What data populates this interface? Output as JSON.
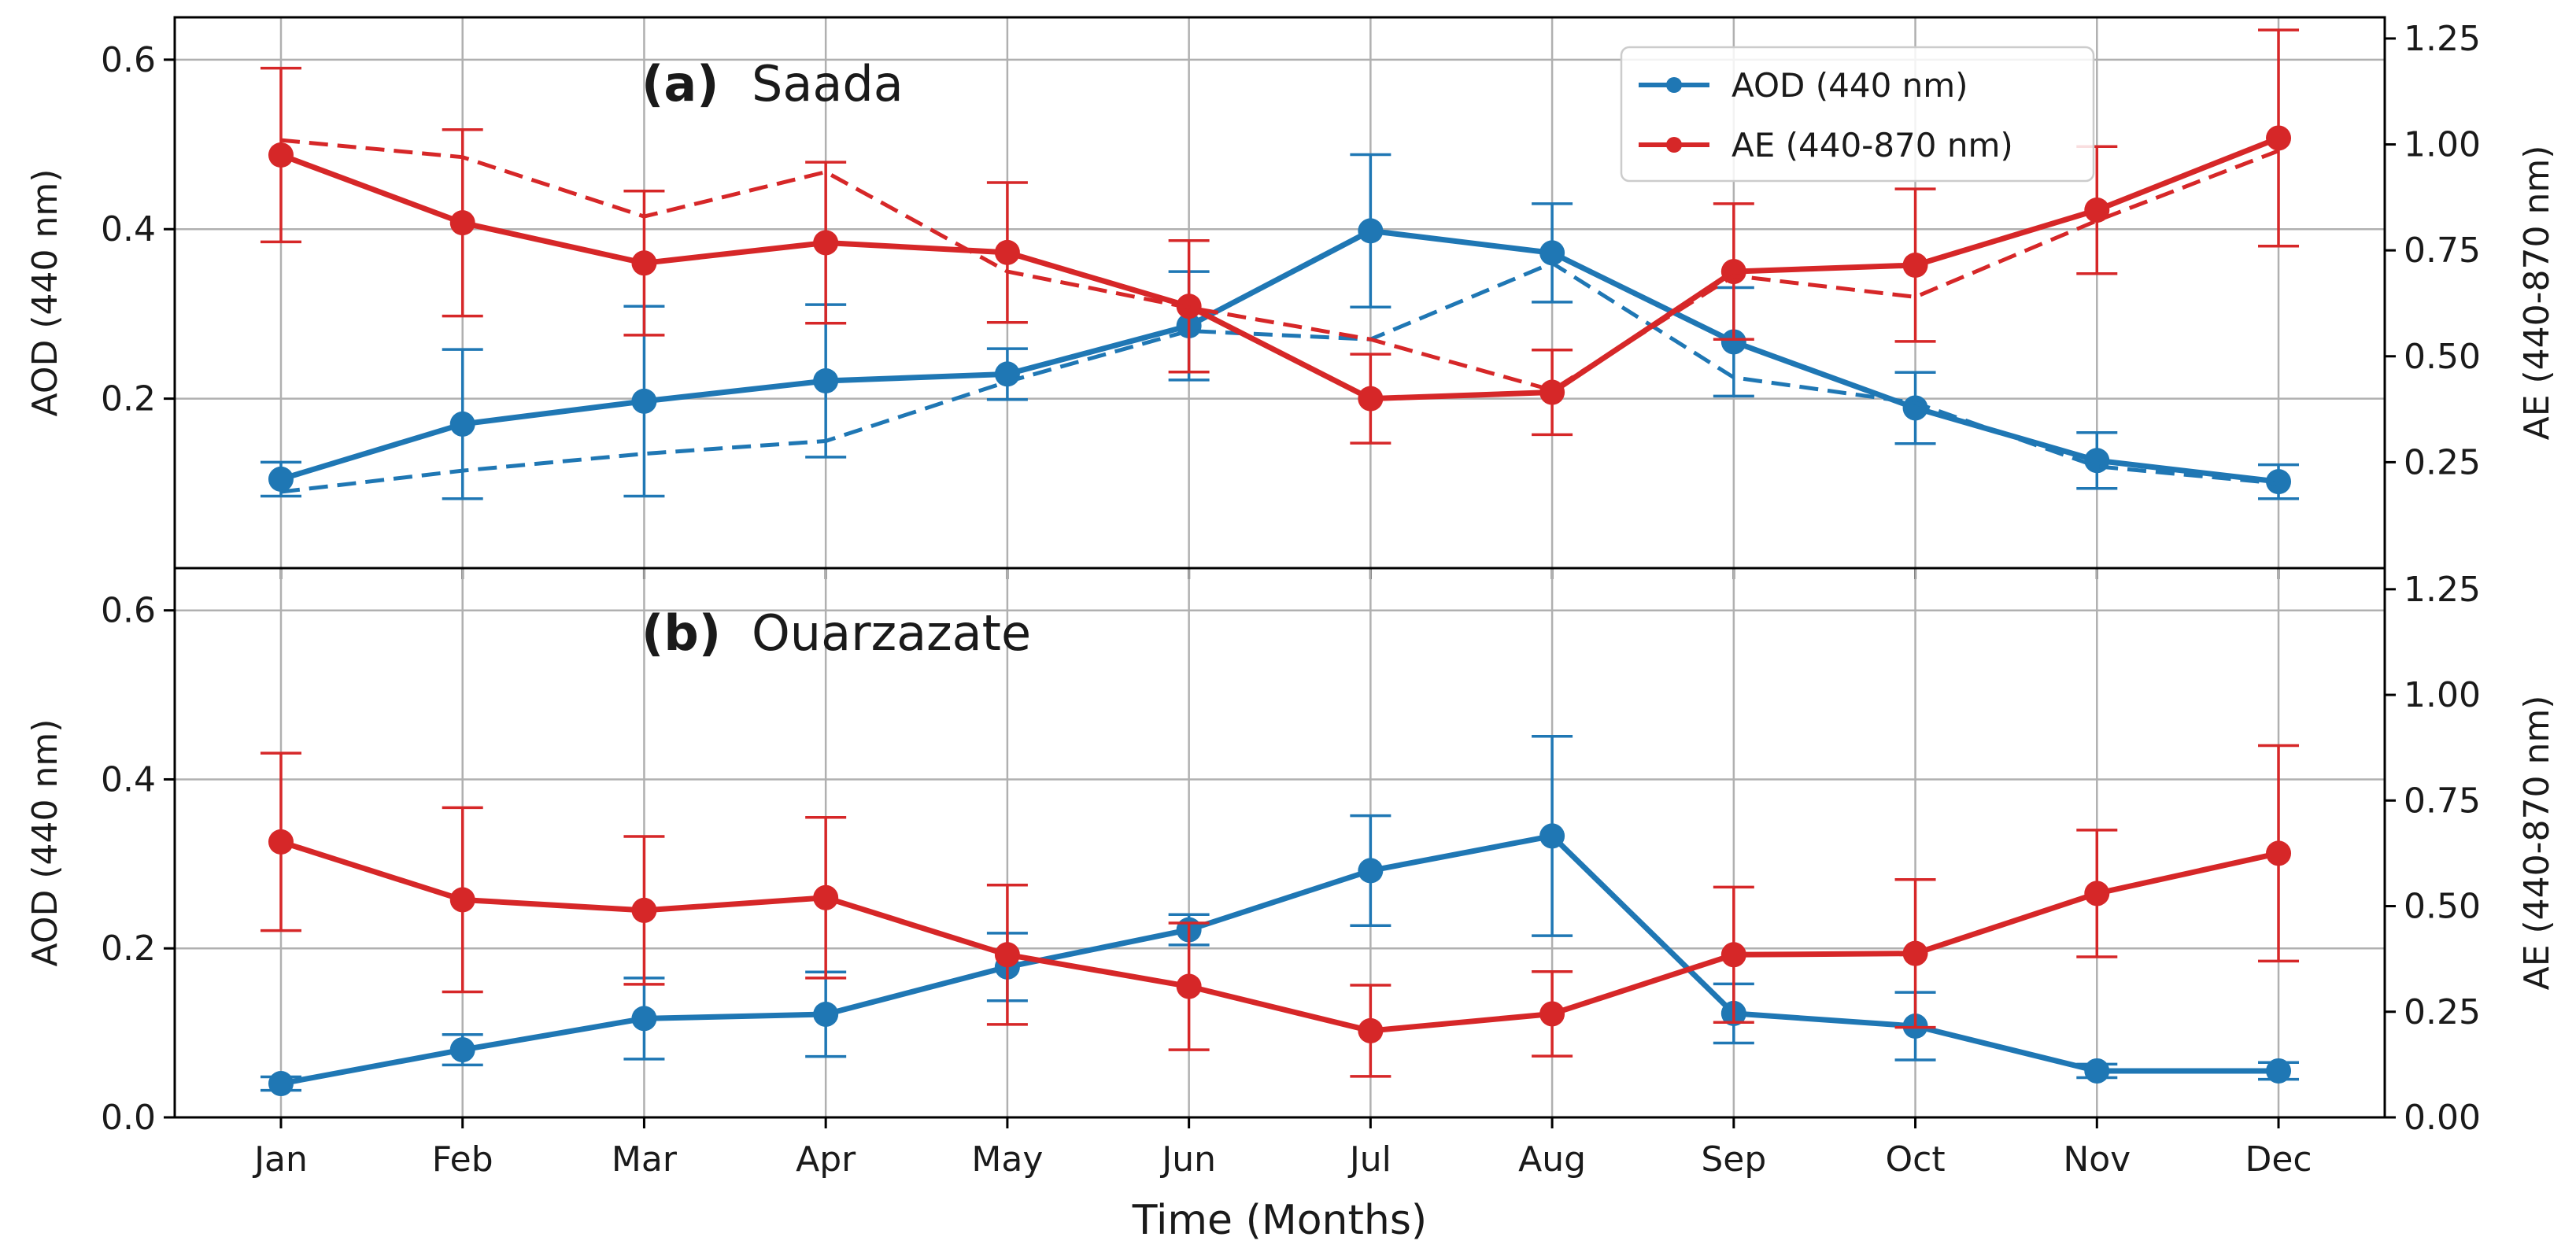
{
  "colors": {
    "aod": "#1f77b4",
    "ae": "#d62728"
  },
  "chart_data": [
    {
      "type": "line",
      "panel_tag": "(a)",
      "title": "Saada",
      "xlabel": "",
      "ylabel_left": "AOD (440 nm)",
      "ylabel_right": "AE (440-870 nm)",
      "categories": [
        "Jan",
        "Feb",
        "Mar",
        "Apr",
        "May",
        "Jun",
        "Jul",
        "Aug",
        "Sep",
        "Oct",
        "Nov",
        "Dec"
      ],
      "ylim_left": [
        0.0,
        0.65
      ],
      "ylim_right": [
        0.0,
        1.3
      ],
      "yticks_left": [
        0.2,
        0.4,
        0.6
      ],
      "yticks_right": [
        0.25,
        0.5,
        0.75,
        1.0,
        1.25
      ],
      "legend": [
        "AOD (440 nm)",
        "AE (440-870 nm)"
      ],
      "legend_position": "top-right",
      "grid": true,
      "series": [
        {
          "name": "AOD (440 nm)",
          "axis": "left",
          "color": "#1f77b4",
          "style": "solid",
          "markers": true,
          "values": [
            0.105,
            0.17,
            0.197,
            0.221,
            0.229,
            0.286,
            0.398,
            0.372,
            0.267,
            0.189,
            0.127,
            0.102
          ],
          "err": [
            0.02,
            0.088,
            0.112,
            0.09,
            0.03,
            0.064,
            0.09,
            0.058,
            0.064,
            0.042,
            0.033,
            0.02
          ]
        },
        {
          "name": "AOD (440 nm) dashed",
          "axis": "left",
          "color": "#1f77b4",
          "style": "dashed",
          "markers": false,
          "values": [
            0.09,
            0.115,
            0.135,
            0.15,
            0.22,
            0.28,
            0.27,
            0.36,
            0.225,
            0.195,
            0.12,
            0.1
          ]
        },
        {
          "name": "AE (440-870 nm)",
          "axis": "right",
          "color": "#d62728",
          "style": "solid",
          "markers": true,
          "values": [
            0.975,
            0.815,
            0.72,
            0.768,
            0.745,
            0.618,
            0.4,
            0.415,
            0.7,
            0.715,
            0.845,
            1.015
          ],
          "err": [
            0.205,
            0.22,
            0.17,
            0.19,
            0.165,
            0.155,
            0.105,
            0.1,
            0.16,
            0.18,
            0.15,
            0.255
          ]
        },
        {
          "name": "AE (440-870 nm) dashed",
          "axis": "right",
          "color": "#d62728",
          "style": "dashed",
          "markers": false,
          "values": [
            1.01,
            0.97,
            0.83,
            0.935,
            0.7,
            0.615,
            0.54,
            0.42,
            0.69,
            0.64,
            0.82,
            0.985
          ]
        }
      ]
    },
    {
      "type": "line",
      "panel_tag": "(b)",
      "title": "Ouarzazate",
      "xlabel": "Time (Months)",
      "ylabel_left": "AOD (440 nm)",
      "ylabel_right": "AE (440-870 nm)",
      "categories": [
        "Jan",
        "Feb",
        "Mar",
        "Apr",
        "May",
        "Jun",
        "Jul",
        "Aug",
        "Sep",
        "Oct",
        "Nov",
        "Dec"
      ],
      "ylim_left": [
        0.0,
        0.65
      ],
      "ylim_right": [
        0.0,
        1.3
      ],
      "yticks_left": [
        0.0,
        0.2,
        0.4,
        0.6
      ],
      "yticks_right": [
        0.0,
        0.25,
        0.5,
        0.75,
        1.0,
        1.25
      ],
      "grid": true,
      "series": [
        {
          "name": "AOD (440 nm)",
          "axis": "left",
          "color": "#1f77b4",
          "style": "solid",
          "markers": true,
          "values": [
            0.04,
            0.08,
            0.117,
            0.122,
            0.178,
            0.222,
            0.292,
            0.333,
            0.123,
            0.108,
            0.055,
            0.055
          ],
          "err": [
            0.008,
            0.018,
            0.048,
            0.05,
            0.04,
            0.018,
            0.065,
            0.118,
            0.035,
            0.04,
            0.008,
            0.01
          ]
        },
        {
          "name": "AE (440-870 nm)",
          "axis": "right",
          "color": "#d62728",
          "style": "solid",
          "markers": true,
          "values": [
            0.652,
            0.515,
            0.49,
            0.52,
            0.385,
            0.31,
            0.205,
            0.245,
            0.385,
            0.388,
            0.53,
            0.625
          ],
          "err": [
            0.21,
            0.218,
            0.175,
            0.19,
            0.165,
            0.15,
            0.108,
            0.1,
            0.16,
            0.175,
            0.15,
            0.255
          ]
        }
      ]
    }
  ]
}
